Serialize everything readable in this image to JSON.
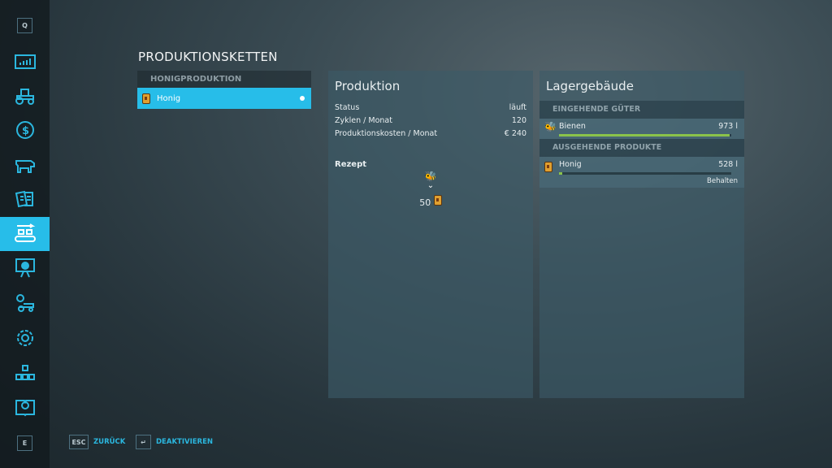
{
  "sidebar": {
    "items": [
      {
        "name": "key-q",
        "key": "Q"
      },
      {
        "name": "statistics"
      },
      {
        "name": "vehicles"
      },
      {
        "name": "finances"
      },
      {
        "name": "animals"
      },
      {
        "name": "contracts"
      },
      {
        "name": "production",
        "active": true
      },
      {
        "name": "tour"
      },
      {
        "name": "garage"
      },
      {
        "name": "settings"
      },
      {
        "name": "hierarchy"
      },
      {
        "name": "help"
      },
      {
        "name": "key-e",
        "key": "E"
      }
    ]
  },
  "page": {
    "title": "PRODUKTIONSKETTEN"
  },
  "list": {
    "header": "HONIGPRODUKTION",
    "items": [
      {
        "label": "Honig",
        "icon": "honey-jar-icon",
        "active": true
      }
    ]
  },
  "production": {
    "title": "Produktion",
    "rows": [
      {
        "label": "Status",
        "value": "läuft"
      },
      {
        "label": "Zyklen / Monat",
        "value": "120"
      },
      {
        "label": "Produktionskosten / Monat",
        "value": "€ 240"
      }
    ],
    "recipe_label": "Rezept",
    "recipe_output_amount": "50"
  },
  "storage": {
    "title": "Lagergebäude",
    "incoming_header": "EINGEHENDE GÜTER",
    "incoming": [
      {
        "name": "Bienen",
        "amount": "973 l",
        "fill": 0.99,
        "icon": "bee-icon"
      }
    ],
    "outgoing_header": "AUSGEHENDE PRODUKTE",
    "outgoing": [
      {
        "name": "Honig",
        "amount": "528 l",
        "fill": 0.02,
        "mode": "Behalten",
        "icon": "honey-jar-icon"
      }
    ]
  },
  "footer": {
    "back_key": "ESC",
    "back_label": "ZURÜCK",
    "toggle_key": "↵",
    "toggle_label": "DEAKTIVIEREN"
  },
  "colors": {
    "accent": "#27bde9",
    "fill_bar": "#8bc34a"
  }
}
